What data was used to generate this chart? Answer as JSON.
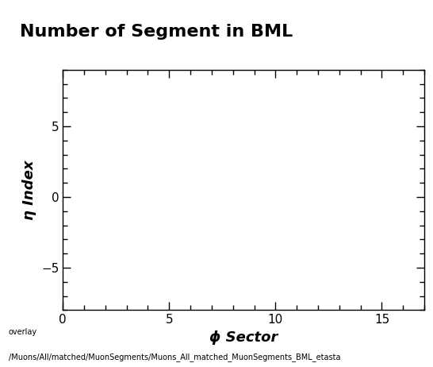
{
  "title": "Number of Segment in BML",
  "xlabel": "ϕ Sector",
  "ylabel": "η Index",
  "xlim": [
    0,
    17
  ],
  "ylim": [
    -8,
    9
  ],
  "xticks": [
    0,
    5,
    10,
    15
  ],
  "yticks": [
    -5,
    0,
    5
  ],
  "x_minor_ticks": 1,
  "y_minor_ticks": 1,
  "background_color": "#ffffff",
  "plot_bg_color": "#ffffff",
  "title_fontsize": 16,
  "axis_label_fontsize": 13,
  "tick_fontsize": 11,
  "footer_line1": "overlay",
  "footer_line2": "/Muons/All/matched/MuonSegments/Muons_All_matched_MuonSegments_BML_etasta",
  "footer_fontsize": 7,
  "title_box_facecolor": "#e8e8e8"
}
